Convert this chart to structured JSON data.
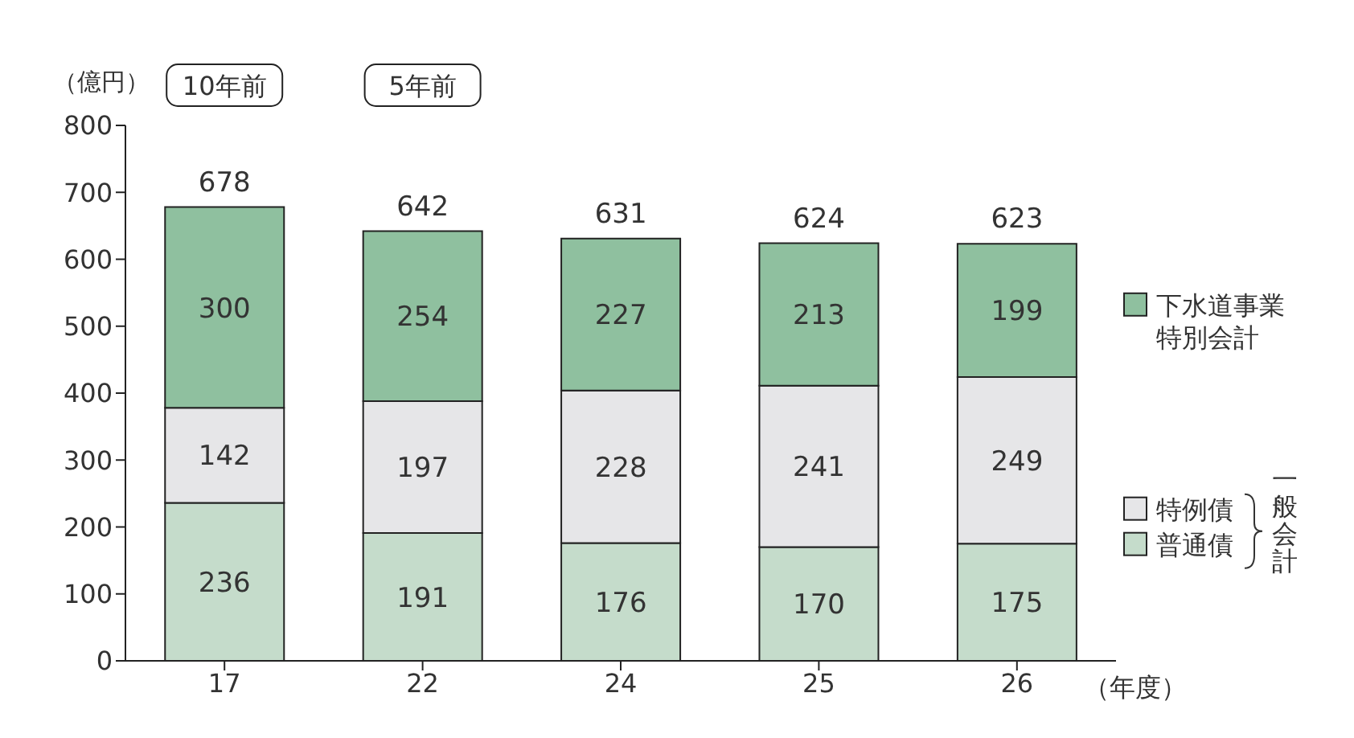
{
  "chart_data": {
    "type": "bar",
    "stacked": true,
    "categories": [
      "17",
      "22",
      "24",
      "25",
      "26"
    ],
    "series": [
      {
        "name": "普通債",
        "color": "#c5dccb",
        "values": [
          236,
          191,
          176,
          170,
          175
        ]
      },
      {
        "name": "特例債",
        "color": "#e6e6e8",
        "values": [
          142,
          197,
          228,
          241,
          249
        ]
      },
      {
        "name": "下水道事業特別会計",
        "color": "#8fc09f",
        "values": [
          300,
          254,
          227,
          213,
          199
        ]
      }
    ],
    "totals": [
      "678",
      "642",
      "631",
      "624",
      "623"
    ],
    "data_labels": true,
    "ylim": [
      0,
      800
    ],
    "yticks": [
      0,
      100,
      200,
      300,
      400,
      500,
      600,
      700,
      800
    ],
    "xlabel": "（年度）",
    "ylabel": "（億円）",
    "annotations": [
      "10年前",
      "5年前",
      "一般会計"
    ],
    "legend": "right",
    "grid": false
  }
}
